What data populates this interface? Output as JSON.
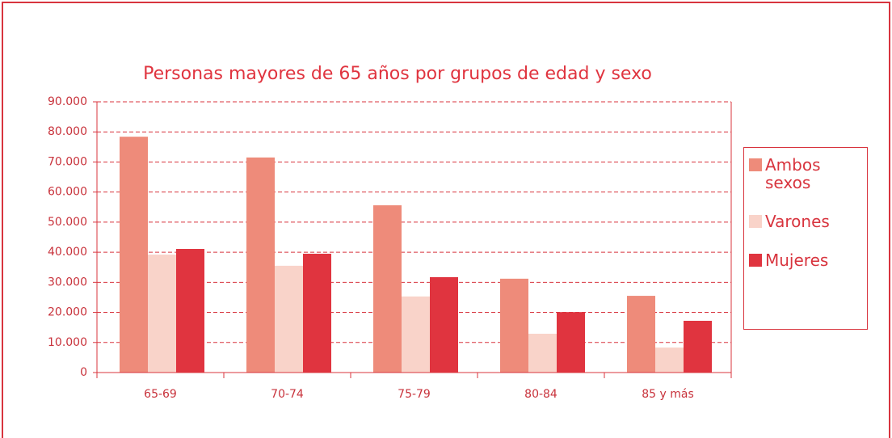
{
  "chart_data": {
    "type": "bar",
    "title": "Personas mayores de 65 años por grupos de edad y sexo",
    "categories": [
      "65-69",
      "70-74",
      "75-79",
      "80-84",
      "85 y más"
    ],
    "series": [
      {
        "name": "Ambos sexos",
        "color": "#ee8b7a",
        "values": [
          78400,
          71500,
          55600,
          31200,
          25500
        ]
      },
      {
        "name": "Varones",
        "color": "#f9d3c9",
        "values": [
          39200,
          35500,
          25300,
          12900,
          8300
        ]
      },
      {
        "name": "Mujeres",
        "color": "#e0343f",
        "values": [
          41100,
          39500,
          31700,
          20100,
          17200
        ]
      }
    ],
    "ylim": [
      0,
      90000
    ],
    "yticks": [
      0,
      {
        "value": 10000,
        "label": "10.000"
      },
      {
        "value": 20000,
        "label": "20.000"
      },
      {
        "value": 30000,
        "label": "30.000"
      },
      {
        "value": 40000,
        "label": "40.000"
      },
      {
        "value": 50000,
        "label": "50.000"
      },
      {
        "value": 60000,
        "label": "60.000"
      },
      {
        "value": 70000,
        "label": "70.000"
      },
      {
        "value": 80000,
        "label": "80.000"
      },
      {
        "value": 90000,
        "label": "90.000"
      }
    ],
    "grid": true,
    "legend": "right"
  }
}
